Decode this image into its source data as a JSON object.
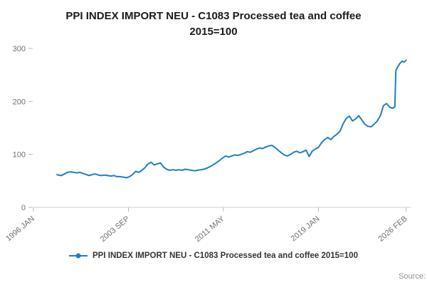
{
  "title": {
    "line1": "PPI INDEX IMPORT NEU - C1083 Processed tea and coffee",
    "line2": "2015=100"
  },
  "legend": {
    "label": "PPI INDEX IMPORT NEU - C1083 Processed tea and coffee 2015=100"
  },
  "source": {
    "label": "Source:"
  },
  "chart_data": {
    "type": "line",
    "title": "PPI INDEX IMPORT NEU - C1083 Processed tea and coffee 2015=100",
    "xlabel": "",
    "ylabel": "",
    "xlim": [
      1996.0,
      2026.5
    ],
    "ylim": [
      0,
      300
    ],
    "grid": false,
    "legend_position": "bottom",
    "line_color": "#1f7fc4",
    "axis_color": "#cfcfcf",
    "tick_color": "#b9b9b9",
    "y_ticks": [
      0,
      100,
      200,
      300
    ],
    "x_ticks": [
      {
        "label": "1996 JAN",
        "x": 1996.0
      },
      {
        "label": "2003 SEP",
        "x": 2003.67
      },
      {
        "label": "2011 MAY",
        "x": 2011.33
      },
      {
        "label": "2019 JAN",
        "x": 2019.0
      },
      {
        "label": "2026 FEB",
        "x": 2026.08
      }
    ],
    "series": [
      {
        "name": "PPI INDEX IMPORT NEU - C1083 Processed tea and coffee 2015=100",
        "points": [
          [
            1997.9,
            62
          ],
          [
            1998.0,
            61
          ],
          [
            1998.25,
            60
          ],
          [
            1998.5,
            63
          ],
          [
            1998.75,
            66
          ],
          [
            1999.0,
            67
          ],
          [
            1999.25,
            66
          ],
          [
            1999.5,
            65
          ],
          [
            1999.75,
            66
          ],
          [
            2000.0,
            64
          ],
          [
            2000.25,
            62
          ],
          [
            2000.5,
            60
          ],
          [
            2000.75,
            62
          ],
          [
            2001.0,
            63
          ],
          [
            2001.25,
            61
          ],
          [
            2001.5,
            60
          ],
          [
            2001.75,
            61
          ],
          [
            2002.0,
            60
          ],
          [
            2002.25,
            59
          ],
          [
            2002.5,
            60
          ],
          [
            2002.75,
            58
          ],
          [
            2003.0,
            58
          ],
          [
            2003.25,
            57
          ],
          [
            2003.5,
            56
          ],
          [
            2003.75,
            58
          ],
          [
            2004.0,
            62
          ],
          [
            2004.25,
            68
          ],
          [
            2004.5,
            66
          ],
          [
            2004.75,
            70
          ],
          [
            2005.0,
            75
          ],
          [
            2005.25,
            82
          ],
          [
            2005.5,
            85
          ],
          [
            2005.75,
            80
          ],
          [
            2006.0,
            82
          ],
          [
            2006.25,
            84
          ],
          [
            2006.5,
            76
          ],
          [
            2006.75,
            72
          ],
          [
            2007.0,
            70
          ],
          [
            2007.25,
            71
          ],
          [
            2007.5,
            70
          ],
          [
            2007.75,
            71
          ],
          [
            2008.0,
            70
          ],
          [
            2008.25,
            72
          ],
          [
            2008.5,
            71
          ],
          [
            2008.75,
            70
          ],
          [
            2009.0,
            69
          ],
          [
            2009.25,
            70
          ],
          [
            2009.5,
            71
          ],
          [
            2009.75,
            72
          ],
          [
            2010.0,
            74
          ],
          [
            2010.25,
            77
          ],
          [
            2010.5,
            80
          ],
          [
            2010.75,
            84
          ],
          [
            2011.0,
            88
          ],
          [
            2011.25,
            93
          ],
          [
            2011.5,
            97
          ],
          [
            2011.75,
            95
          ],
          [
            2012.0,
            97
          ],
          [
            2012.25,
            99
          ],
          [
            2012.5,
            98
          ],
          [
            2012.75,
            100
          ],
          [
            2013.0,
            102
          ],
          [
            2013.25,
            105
          ],
          [
            2013.5,
            104
          ],
          [
            2013.75,
            107
          ],
          [
            2014.0,
            110
          ],
          [
            2014.25,
            112
          ],
          [
            2014.5,
            111
          ],
          [
            2014.75,
            114
          ],
          [
            2015.0,
            116
          ],
          [
            2015.25,
            117
          ],
          [
            2015.5,
            113
          ],
          [
            2015.75,
            108
          ],
          [
            2016.0,
            103
          ],
          [
            2016.25,
            99
          ],
          [
            2016.5,
            97
          ],
          [
            2016.75,
            100
          ],
          [
            2017.0,
            104
          ],
          [
            2017.25,
            106
          ],
          [
            2017.5,
            103
          ],
          [
            2017.75,
            105
          ],
          [
            2018.0,
            108
          ],
          [
            2018.25,
            96
          ],
          [
            2018.5,
            106
          ],
          [
            2018.75,
            110
          ],
          [
            2019.0,
            113
          ],
          [
            2019.25,
            122
          ],
          [
            2019.5,
            128
          ],
          [
            2019.75,
            132
          ],
          [
            2020.0,
            128
          ],
          [
            2020.25,
            134
          ],
          [
            2020.5,
            138
          ],
          [
            2020.75,
            144
          ],
          [
            2021.0,
            158
          ],
          [
            2021.25,
            168
          ],
          [
            2021.5,
            172
          ],
          [
            2021.75,
            163
          ],
          [
            2022.0,
            167
          ],
          [
            2022.25,
            173
          ],
          [
            2022.5,
            165
          ],
          [
            2022.75,
            157
          ],
          [
            2023.0,
            153
          ],
          [
            2023.25,
            152
          ],
          [
            2023.5,
            157
          ],
          [
            2023.75,
            163
          ],
          [
            2024.0,
            173
          ],
          [
            2024.25,
            192
          ],
          [
            2024.5,
            196
          ],
          [
            2024.75,
            189
          ],
          [
            2025.0,
            187
          ],
          [
            2025.17,
            190
          ],
          [
            2025.25,
            258
          ],
          [
            2025.42,
            266
          ],
          [
            2025.58,
            272
          ],
          [
            2025.75,
            276
          ],
          [
            2025.9,
            274
          ],
          [
            2026.08,
            278
          ]
        ]
      }
    ]
  }
}
